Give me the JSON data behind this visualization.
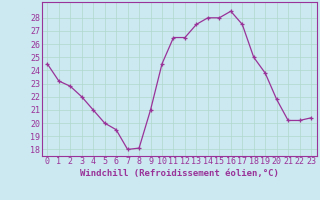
{
  "x": [
    0,
    1,
    2,
    3,
    4,
    5,
    6,
    7,
    8,
    9,
    10,
    11,
    12,
    13,
    14,
    15,
    16,
    17,
    18,
    19,
    20,
    21,
    22,
    23
  ],
  "y": [
    24.5,
    23.2,
    22.8,
    22.0,
    21.0,
    20.0,
    19.5,
    18.0,
    18.1,
    21.0,
    24.5,
    26.5,
    26.5,
    27.5,
    28.0,
    28.0,
    28.5,
    27.5,
    25.0,
    23.8,
    21.8,
    20.2,
    20.2,
    20.4
  ],
  "line_color": "#993399",
  "marker_color": "#993399",
  "background_color": "#cce8f0",
  "grid_color": "#b0d8cc",
  "xlabel": "Windchill (Refroidissement éolien,°C)",
  "ylim": [
    17.5,
    29.2
  ],
  "xlim": [
    -0.5,
    23.5
  ],
  "yticks": [
    18,
    19,
    20,
    21,
    22,
    23,
    24,
    25,
    26,
    27,
    28
  ],
  "xticks": [
    0,
    1,
    2,
    3,
    4,
    5,
    6,
    7,
    8,
    9,
    10,
    11,
    12,
    13,
    14,
    15,
    16,
    17,
    18,
    19,
    20,
    21,
    22,
    23
  ],
  "label_fontsize": 6.5,
  "tick_fontsize": 6.0
}
